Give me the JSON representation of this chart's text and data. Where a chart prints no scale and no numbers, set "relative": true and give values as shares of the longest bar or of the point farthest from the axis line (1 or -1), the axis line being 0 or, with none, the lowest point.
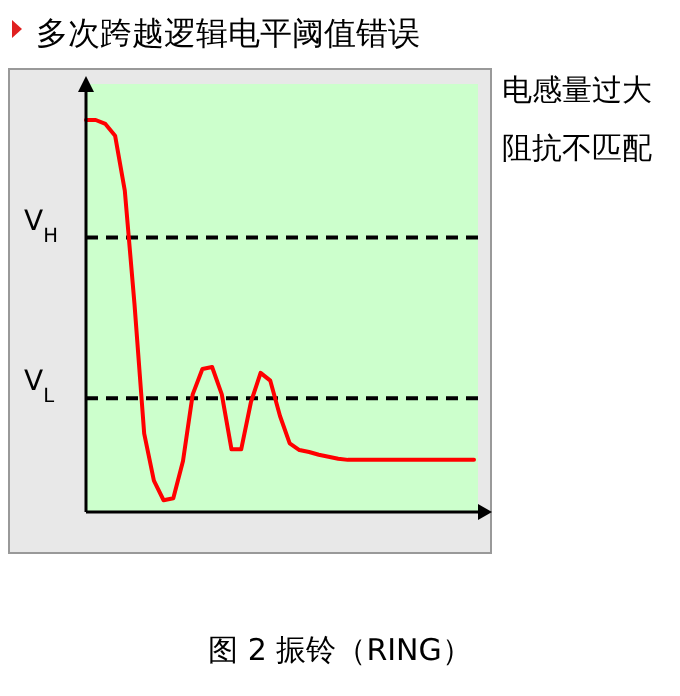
{
  "chart_data": {
    "type": "line",
    "title": "多次跨越逻辑电平阈值错误",
    "relative": true,
    "marker": "none",
    "line_style": "solid",
    "categories": [
      null,
      null,
      null,
      null,
      null,
      null,
      null,
      null,
      null,
      null,
      null,
      null,
      null,
      null,
      null,
      null,
      null,
      null,
      null,
      null,
      null,
      null,
      null,
      null,
      null,
      null,
      null,
      null,
      null,
      null,
      null,
      null,
      null,
      null,
      null,
      null,
      null,
      null,
      null,
      null,
      null
    ],
    "series": [
      {
        "color": "#ff0000",
        "values": [
          1.0,
          1.0,
          0.99,
          0.96,
          0.82,
          0.53,
          0.2,
          0.08,
          0.03,
          0.035,
          0.13,
          0.3,
          0.365,
          0.37,
          0.3,
          0.16,
          0.16,
          0.28,
          0.355,
          0.335,
          0.245,
          0.175,
          0.158,
          0.153,
          0.146,
          0.141,
          0.136,
          0.133,
          0.133,
          0.133,
          0.133,
          0.133,
          0.133,
          0.133,
          0.133,
          0.133,
          0.133,
          0.133,
          0.133,
          0.133,
          0.133
        ]
      }
    ],
    "ref_lines": [
      {
        "axis": "y",
        "value": 0.7,
        "label": "V$_{H}$",
        "color": "#000000",
        "line_style": "dashed"
      },
      {
        "axis": "y",
        "value": 0.29,
        "label": "V$_{L}$",
        "color": "#000000",
        "line_style": "dashed"
      }
    ],
    "annotations": [
      "电感量过大",
      "阻抗不匹配",
      "图 2 振铃（RING）"
    ]
  }
}
